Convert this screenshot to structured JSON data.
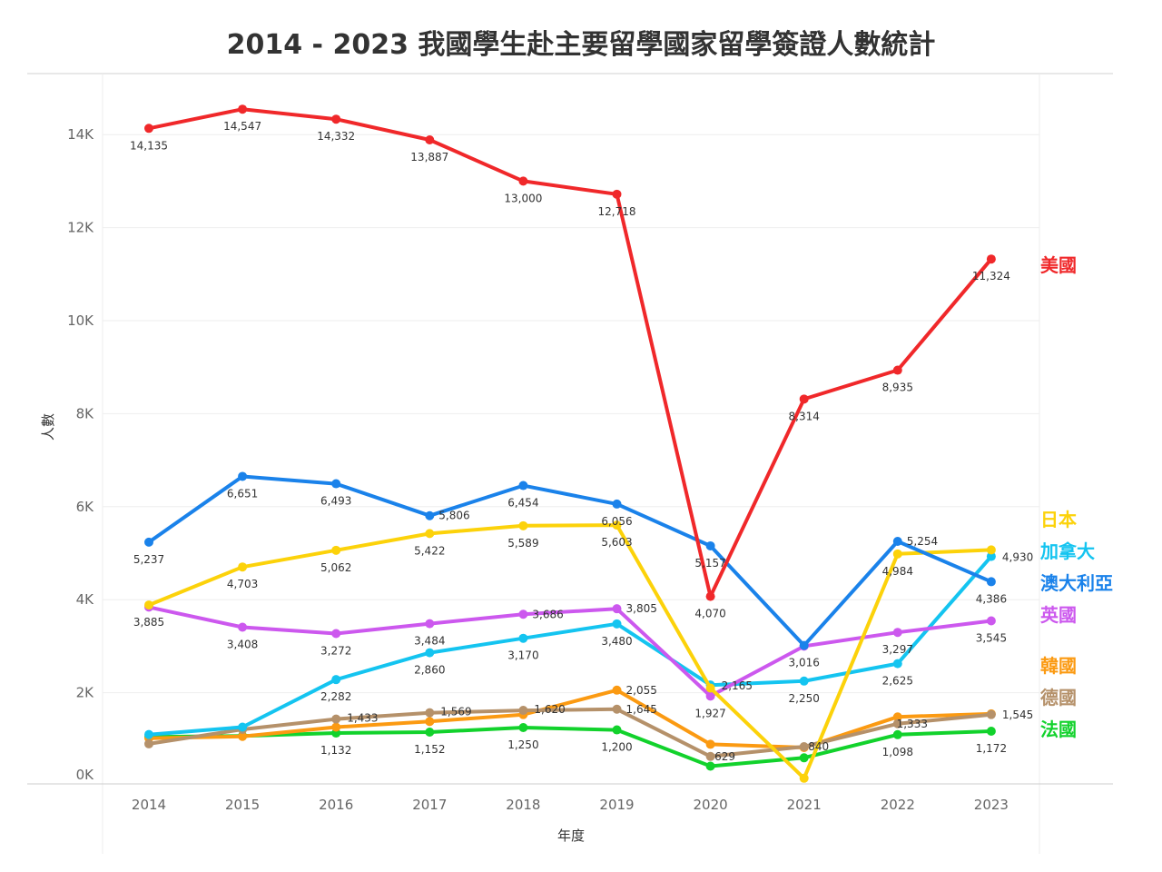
{
  "chart_data": {
    "type": "line",
    "title": "2014 - 2023 我國學生赴主要留學國家留學簽證人數統計",
    "xlabel": "年度",
    "ylabel": "人數",
    "ylim": [
      0,
      15000
    ],
    "y_ticks": [
      {
        "value": 0,
        "label": "0K"
      },
      {
        "value": 2000,
        "label": "2K"
      },
      {
        "value": 4000,
        "label": "4K"
      },
      {
        "value": 6000,
        "label": "6K"
      },
      {
        "value": 8000,
        "label": "8K"
      },
      {
        "value": 10000,
        "label": "10K"
      },
      {
        "value": 12000,
        "label": "12K"
      },
      {
        "value": 14000,
        "label": "14K"
      }
    ],
    "grid": true,
    "legend_position": "right",
    "categories": [
      "2014",
      "2015",
      "2016",
      "2017",
      "2018",
      "2019",
      "2020",
      "2021",
      "2022",
      "2023"
    ],
    "series": [
      {
        "name": "美國",
        "color": "#f0282a",
        "values": [
          14135,
          14547,
          14332,
          13887,
          13000,
          12718,
          4070,
          8314,
          8935,
          11324
        ],
        "labels": [
          "14,135",
          "14,547",
          "14,332",
          "13,887",
          "13,000",
          "12,718",
          "4,070",
          "8,314",
          "8,935",
          "11,324"
        ]
      },
      {
        "name": "澳大利亞",
        "color": "#1a82ea",
        "values": [
          5237,
          6651,
          6493,
          5806,
          6454,
          6056,
          5157,
          3016,
          5254,
          4386
        ],
        "labels": [
          "5,237",
          "6,651",
          "6,493",
          "5,806",
          "6,454",
          "6,056",
          "5,157",
          "3,016",
          "5,254",
          "4,386"
        ]
      },
      {
        "name": "日本",
        "color": "#fcd20a",
        "values": [
          3885,
          4703,
          5062,
          5422,
          5589,
          5603,
          2100,
          160,
          4984,
          5070
        ],
        "labels": [
          "3,885",
          "4,703",
          "5,062",
          "5,422",
          "5,589",
          "5,603",
          null,
          null,
          "4,984",
          null
        ]
      },
      {
        "name": "英國",
        "color": "#cc58ee",
        "values": [
          3840,
          3408,
          3272,
          3484,
          3686,
          3805,
          1927,
          3000,
          3297,
          3545
        ],
        "labels": [
          null,
          "3,408",
          "3,272",
          "3,484",
          "3,686",
          "3,805",
          "1,927",
          null,
          "3,297",
          "3,545"
        ]
      },
      {
        "name": "加拿大",
        "color": "#14c4f0",
        "values": [
          1100,
          1260,
          2282,
          2860,
          3170,
          3480,
          2165,
          2250,
          2625,
          4930
        ],
        "labels": [
          null,
          null,
          "2,282",
          "2,860",
          "3,170",
          "3,480",
          "2,165",
          "2,250",
          "2,625",
          "4,930"
        ]
      },
      {
        "name": "韓國",
        "color": "#fb9a12",
        "values": [
          1020,
          1060,
          1260,
          1380,
          1530,
          2055,
          890,
          820,
          1480,
          1545
        ],
        "labels": [
          null,
          null,
          null,
          null,
          null,
          "2,055",
          null,
          null,
          null,
          "1,545"
        ]
      },
      {
        "name": "德國",
        "color": "#b5916a",
        "values": [
          900,
          1210,
          1433,
          1569,
          1620,
          1645,
          629,
          840,
          1333,
          1530
        ],
        "labels": [
          null,
          null,
          "1,433",
          "1,569",
          "1,620",
          "1,645",
          "629",
          "840",
          "1,333",
          null
        ]
      },
      {
        "name": "法國",
        "color": "#12d22c",
        "values": [
          1050,
          1070,
          1132,
          1152,
          1250,
          1200,
          420,
          600,
          1098,
          1172
        ],
        "labels": [
          null,
          null,
          "1,132",
          "1,152",
          "1,250",
          "1,200",
          null,
          null,
          "1,098",
          "1,172"
        ]
      }
    ],
    "legend": [
      {
        "name": "美國",
        "color": "#f0282a"
      },
      {
        "name": "日本",
        "color": "#fcd20a"
      },
      {
        "name": "加拿大",
        "color": "#14c4f0"
      },
      {
        "name": "澳大利亞",
        "color": "#1a82ea"
      },
      {
        "name": "英國",
        "color": "#cc58ee"
      },
      {
        "name": "韓國",
        "color": "#fb9a12"
      },
      {
        "name": "德國",
        "color": "#b5916a"
      },
      {
        "name": "法國",
        "color": "#12d22c"
      }
    ]
  }
}
